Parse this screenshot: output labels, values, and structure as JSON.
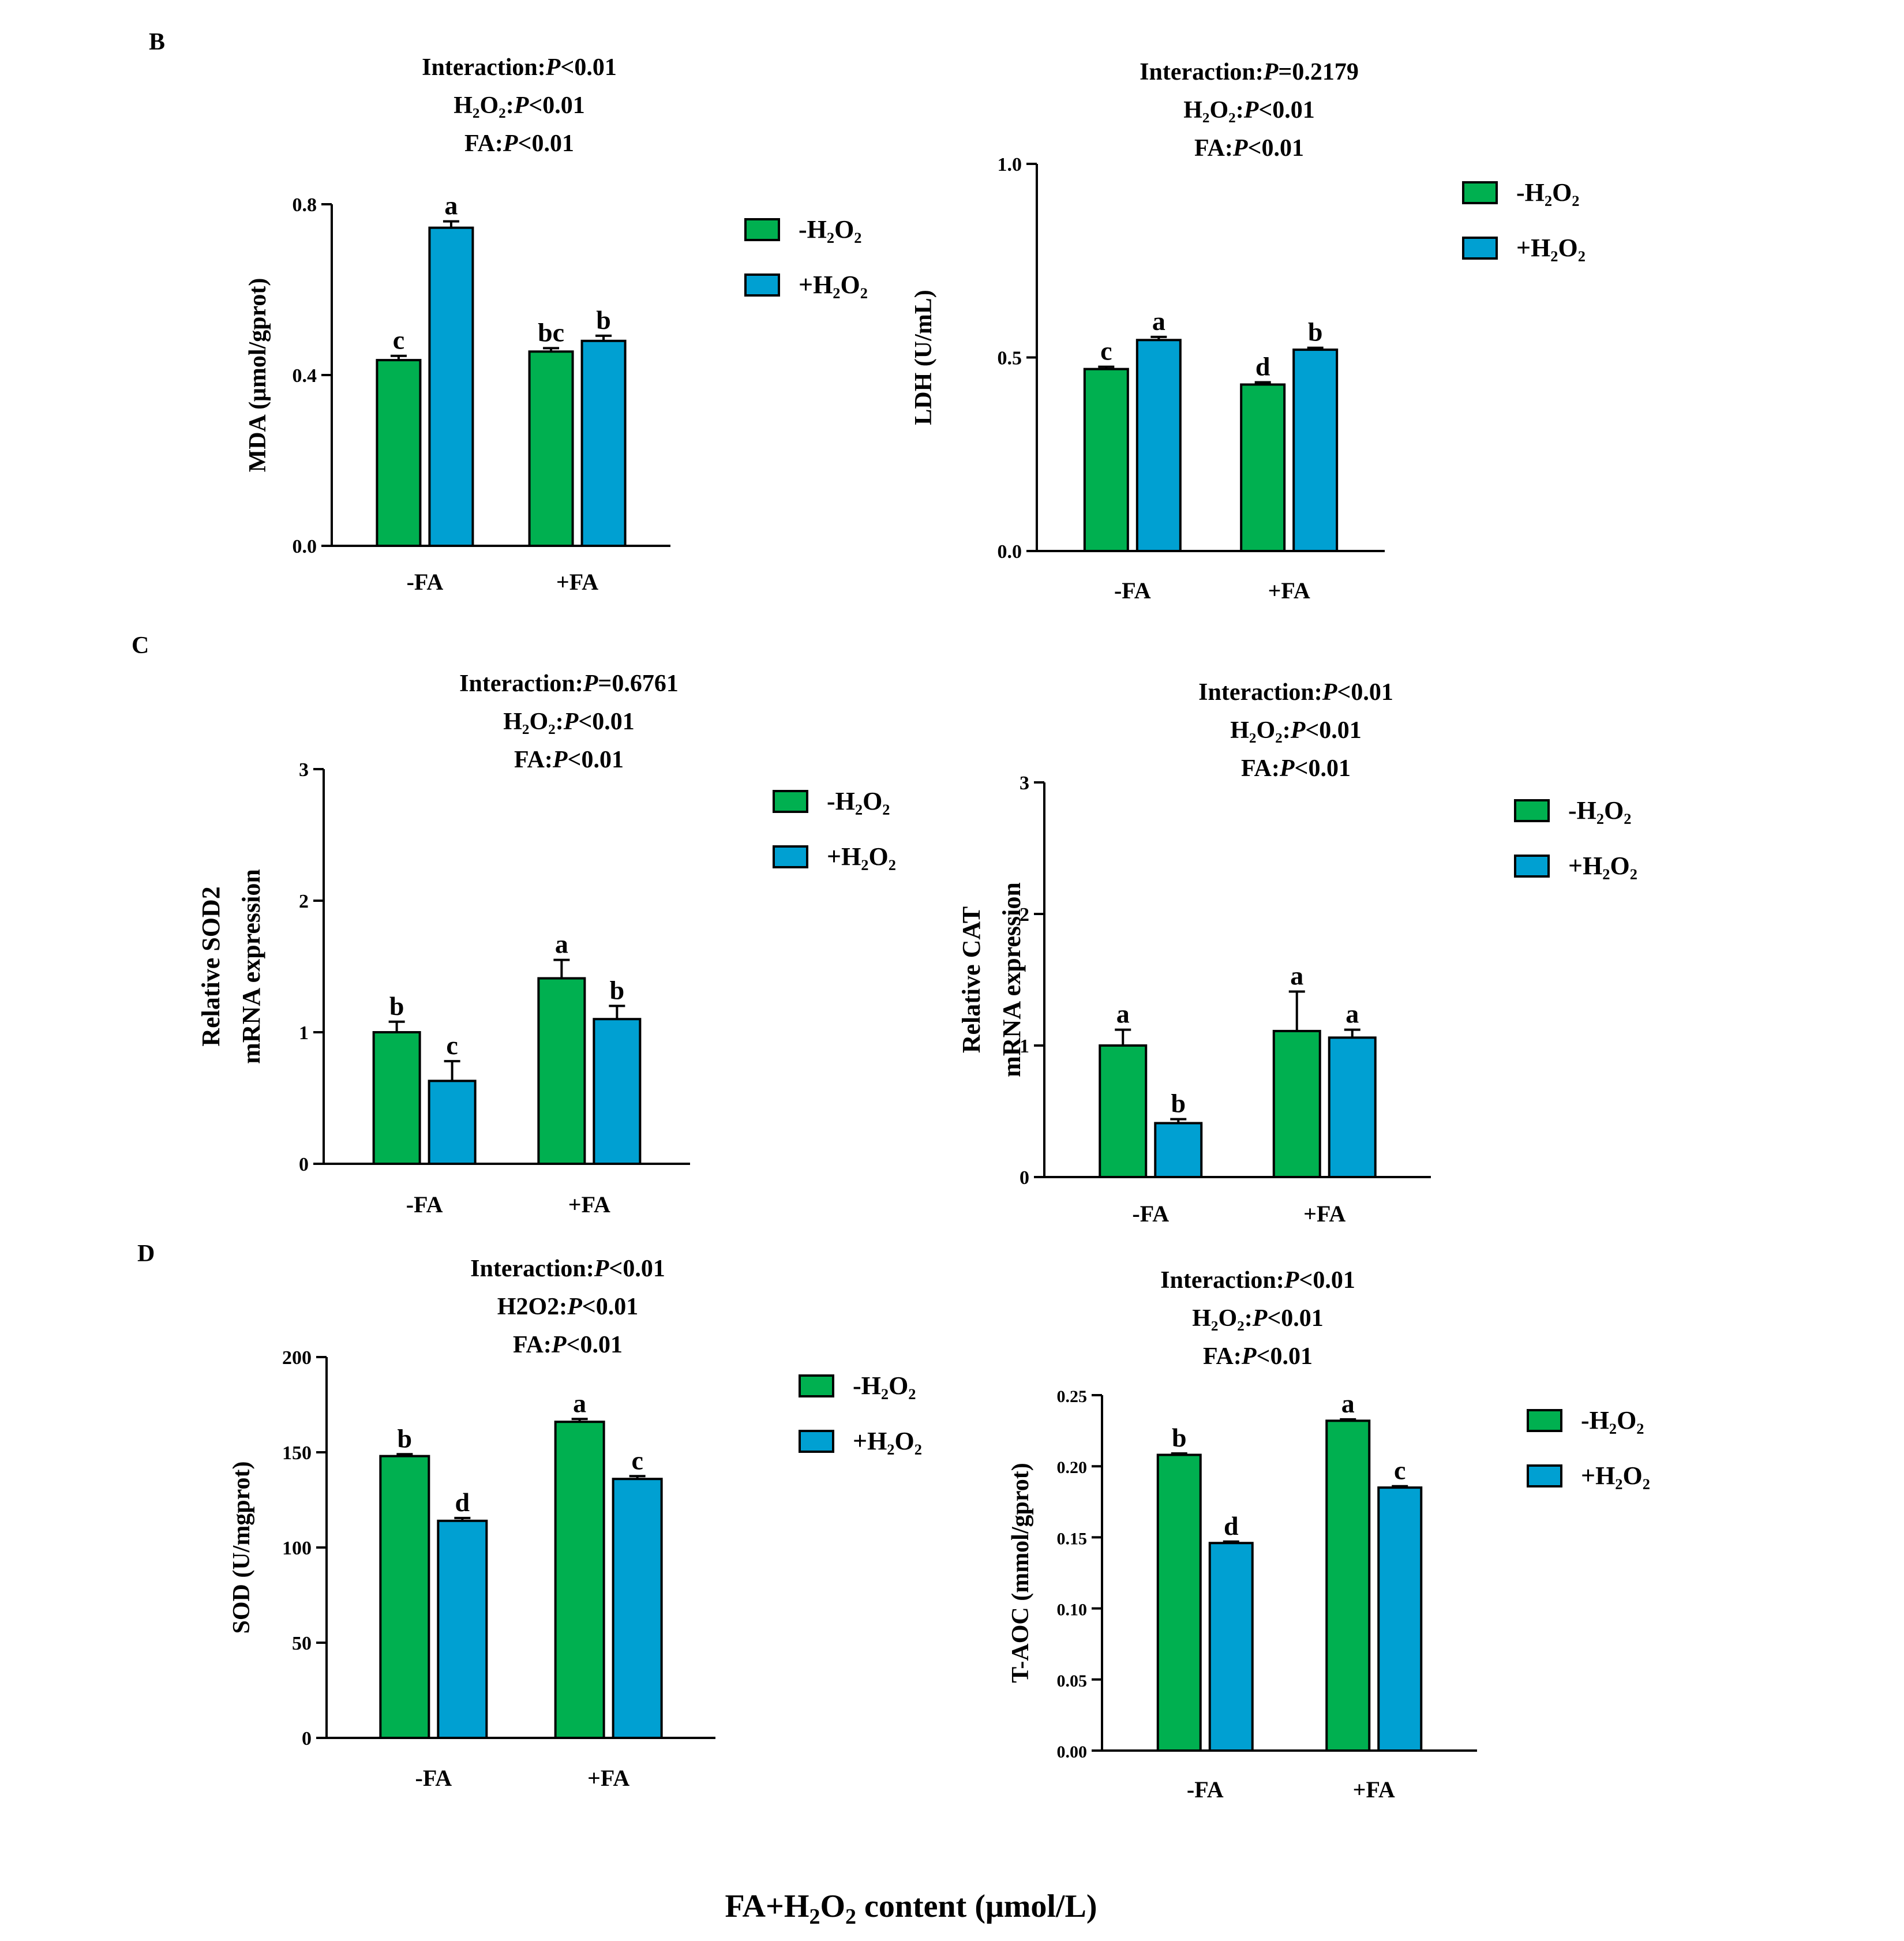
{
  "figure": {
    "panel_labels": [
      "B",
      "C",
      "D"
    ],
    "global_xlabel": {
      "prefix": "FA+H",
      "sub": "2",
      "mid": "O",
      "sub2": "2",
      "suffix": " content (μmol/L)"
    }
  },
  "colors": {
    "minus_h2o2": "#00b050",
    "plus_h2o2": "#00a0d2",
    "axis": "#000000"
  },
  "chart_data": [
    {
      "id": "mda",
      "panel": "B",
      "type": "bar",
      "ylabel_lines": [
        "MDA (μmol/gprot)"
      ],
      "categories": [
        "-FA",
        "+FA"
      ],
      "ylim": [
        0,
        0.8
      ],
      "yticks": [
        "0.0",
        "0.4",
        "0.8"
      ],
      "ytick_values": [
        0,
        0.4,
        0.8
      ],
      "stats": [
        {
          "label": "Interaction:",
          "p": "P",
          "val": "<0.01"
        },
        {
          "label": "H₂O₂:",
          "p": "P",
          "val": "<0.01"
        },
        {
          "label": "FA:",
          "p": "P",
          "val": "<0.01"
        }
      ],
      "legend": [
        "-H₂O₂",
        "+H₂O₂"
      ],
      "series": [
        {
          "name": "-H₂O₂",
          "values": [
            0.435,
            0.455
          ],
          "errors": [
            0.01,
            0.008
          ],
          "letters": [
            "c",
            "bc"
          ]
        },
        {
          "name": "+H₂O₂",
          "values": [
            0.745,
            0.48
          ],
          "errors": [
            0.015,
            0.012
          ],
          "letters": [
            "a",
            "b"
          ]
        }
      ]
    },
    {
      "id": "ldh",
      "panel": "B",
      "type": "bar",
      "ylabel_lines": [
        "LDH (U/mL)"
      ],
      "categories": [
        "-FA",
        "+FA"
      ],
      "ylim": [
        0,
        1.0
      ],
      "yticks": [
        "0.0",
        "0.5",
        "1.0"
      ],
      "ytick_values": [
        0,
        0.5,
        1.0
      ],
      "stats": [
        {
          "label": "Interaction:",
          "p": "P",
          "val": "=0.2179"
        },
        {
          "label": "H₂O₂:",
          "p": "P",
          "val": "<0.01"
        },
        {
          "label": "FA:",
          "p": "P",
          "val": "<0.01"
        }
      ],
      "legend": [
        "-H₂O₂",
        "+H₂O₂"
      ],
      "series": [
        {
          "name": "-H₂O₂",
          "values": [
            0.47,
            0.43
          ],
          "errors": [
            0.006,
            0.006
          ],
          "letters": [
            "c",
            "d"
          ]
        },
        {
          "name": "+H₂O₂",
          "values": [
            0.545,
            0.52
          ],
          "errors": [
            0.008,
            0.005
          ],
          "letters": [
            "a",
            "b"
          ]
        }
      ]
    },
    {
      "id": "sod2",
      "panel": "C",
      "type": "bar",
      "ylabel_lines": [
        "Relative  SOD2",
        "mRNA expression"
      ],
      "categories": [
        "-FA",
        "+FA"
      ],
      "ylim": [
        0,
        3
      ],
      "yticks": [
        "0",
        "1",
        "2",
        "3"
      ],
      "ytick_values": [
        0,
        1,
        2,
        3
      ],
      "stats": [
        {
          "label": "Interaction:",
          "p": "P",
          "val": "=0.6761"
        },
        {
          "label": "H₂O₂:",
          "p": "P",
          "val": "<0.01"
        },
        {
          "label": "FA:",
          "p": "P",
          "val": "<0.01"
        }
      ],
      "legend": [
        "-H₂O₂",
        "+H₂O₂"
      ],
      "series": [
        {
          "name": "-H₂O₂",
          "values": [
            1.0,
            1.41
          ],
          "errors": [
            0.08,
            0.14
          ],
          "letters": [
            "b",
            "a"
          ]
        },
        {
          "name": "+H₂O₂",
          "values": [
            0.63,
            1.1
          ],
          "errors": [
            0.15,
            0.1
          ],
          "letters": [
            "c",
            "b"
          ]
        }
      ]
    },
    {
      "id": "cat",
      "panel": "C",
      "type": "bar",
      "ylabel_lines": [
        "Relative CAT",
        "mRNA expression"
      ],
      "categories": [
        "-FA",
        "+FA"
      ],
      "ylim": [
        0,
        3
      ],
      "yticks": [
        "0",
        "1",
        "2",
        "3"
      ],
      "ytick_values": [
        0,
        1,
        2,
        3
      ],
      "stats": [
        {
          "label": "Interaction:",
          "p": "P",
          "val": "<0.01"
        },
        {
          "label": "H₂O₂:",
          "p": "P",
          "val": "<0.01"
        },
        {
          "label": "FA:",
          "p": "P",
          "val": "<0.01"
        }
      ],
      "legend": [
        "-H₂O₂",
        "+H₂O₂"
      ],
      "series": [
        {
          "name": "-H₂O₂",
          "values": [
            1.0,
            1.11
          ],
          "errors": [
            0.12,
            0.3
          ],
          "letters": [
            "a",
            "a"
          ]
        },
        {
          "name": "+H₂O₂",
          "values": [
            0.41,
            1.06
          ],
          "errors": [
            0.03,
            0.06
          ],
          "letters": [
            "b",
            "a"
          ]
        }
      ]
    },
    {
      "id": "sod",
      "panel": "D",
      "type": "bar",
      "ylabel_lines": [
        "SOD (U/mgprot)"
      ],
      "categories": [
        "-FA",
        "+FA"
      ],
      "ylim": [
        0,
        200
      ],
      "yticks": [
        "0",
        "50",
        "100",
        "150",
        "200"
      ],
      "ytick_values": [
        0,
        50,
        100,
        150,
        200
      ],
      "stats": [
        {
          "label": "Interaction:",
          "p": "P",
          "val": "<0.01"
        },
        {
          "label": "H2O2:",
          "p": "P",
          "val": "<0.01"
        },
        {
          "label": "FA:",
          "p": "P",
          "val": "<0.01"
        }
      ],
      "legend": [
        "-H₂O₂",
        "+H₂O₂"
      ],
      "series": [
        {
          "name": "-H₂O₂",
          "values": [
            148,
            166
          ],
          "errors": [
            1,
            1.5
          ],
          "letters": [
            "b",
            "a"
          ]
        },
        {
          "name": "+H₂O₂",
          "values": [
            114,
            136
          ],
          "errors": [
            1.5,
            1.5
          ],
          "letters": [
            "d",
            "c"
          ]
        }
      ]
    },
    {
      "id": "taoc",
      "panel": "D",
      "type": "bar",
      "ylabel_lines": [
        "T-AOC (mmol/gprot)"
      ],
      "categories": [
        "-FA",
        "+FA"
      ],
      "ylim": [
        0,
        0.25
      ],
      "yticks": [
        "0.00",
        "0.05",
        "0.10",
        "0.15",
        "0.20",
        "0.25"
      ],
      "ytick_values": [
        0,
        0.05,
        0.1,
        0.15,
        0.2,
        0.25
      ],
      "stats": [
        {
          "label": "Interaction:",
          "p": "P",
          "val": "<0.01"
        },
        {
          "label": "H₂O₂:",
          "p": "P",
          "val": "<0.01"
        },
        {
          "label": "FA:",
          "p": "P",
          "val": "<0.01"
        }
      ],
      "legend": [
        "-H₂O₂",
        "+H₂O₂"
      ],
      "series": [
        {
          "name": "-H₂O₂",
          "values": [
            0.208,
            0.232
          ],
          "errors": [
            0.001,
            0.001
          ],
          "letters": [
            "b",
            "a"
          ]
        },
        {
          "name": "+H₂O₂",
          "values": [
            0.146,
            0.185
          ],
          "errors": [
            0.001,
            0.001
          ],
          "letters": [
            "d",
            "c"
          ]
        }
      ]
    }
  ]
}
